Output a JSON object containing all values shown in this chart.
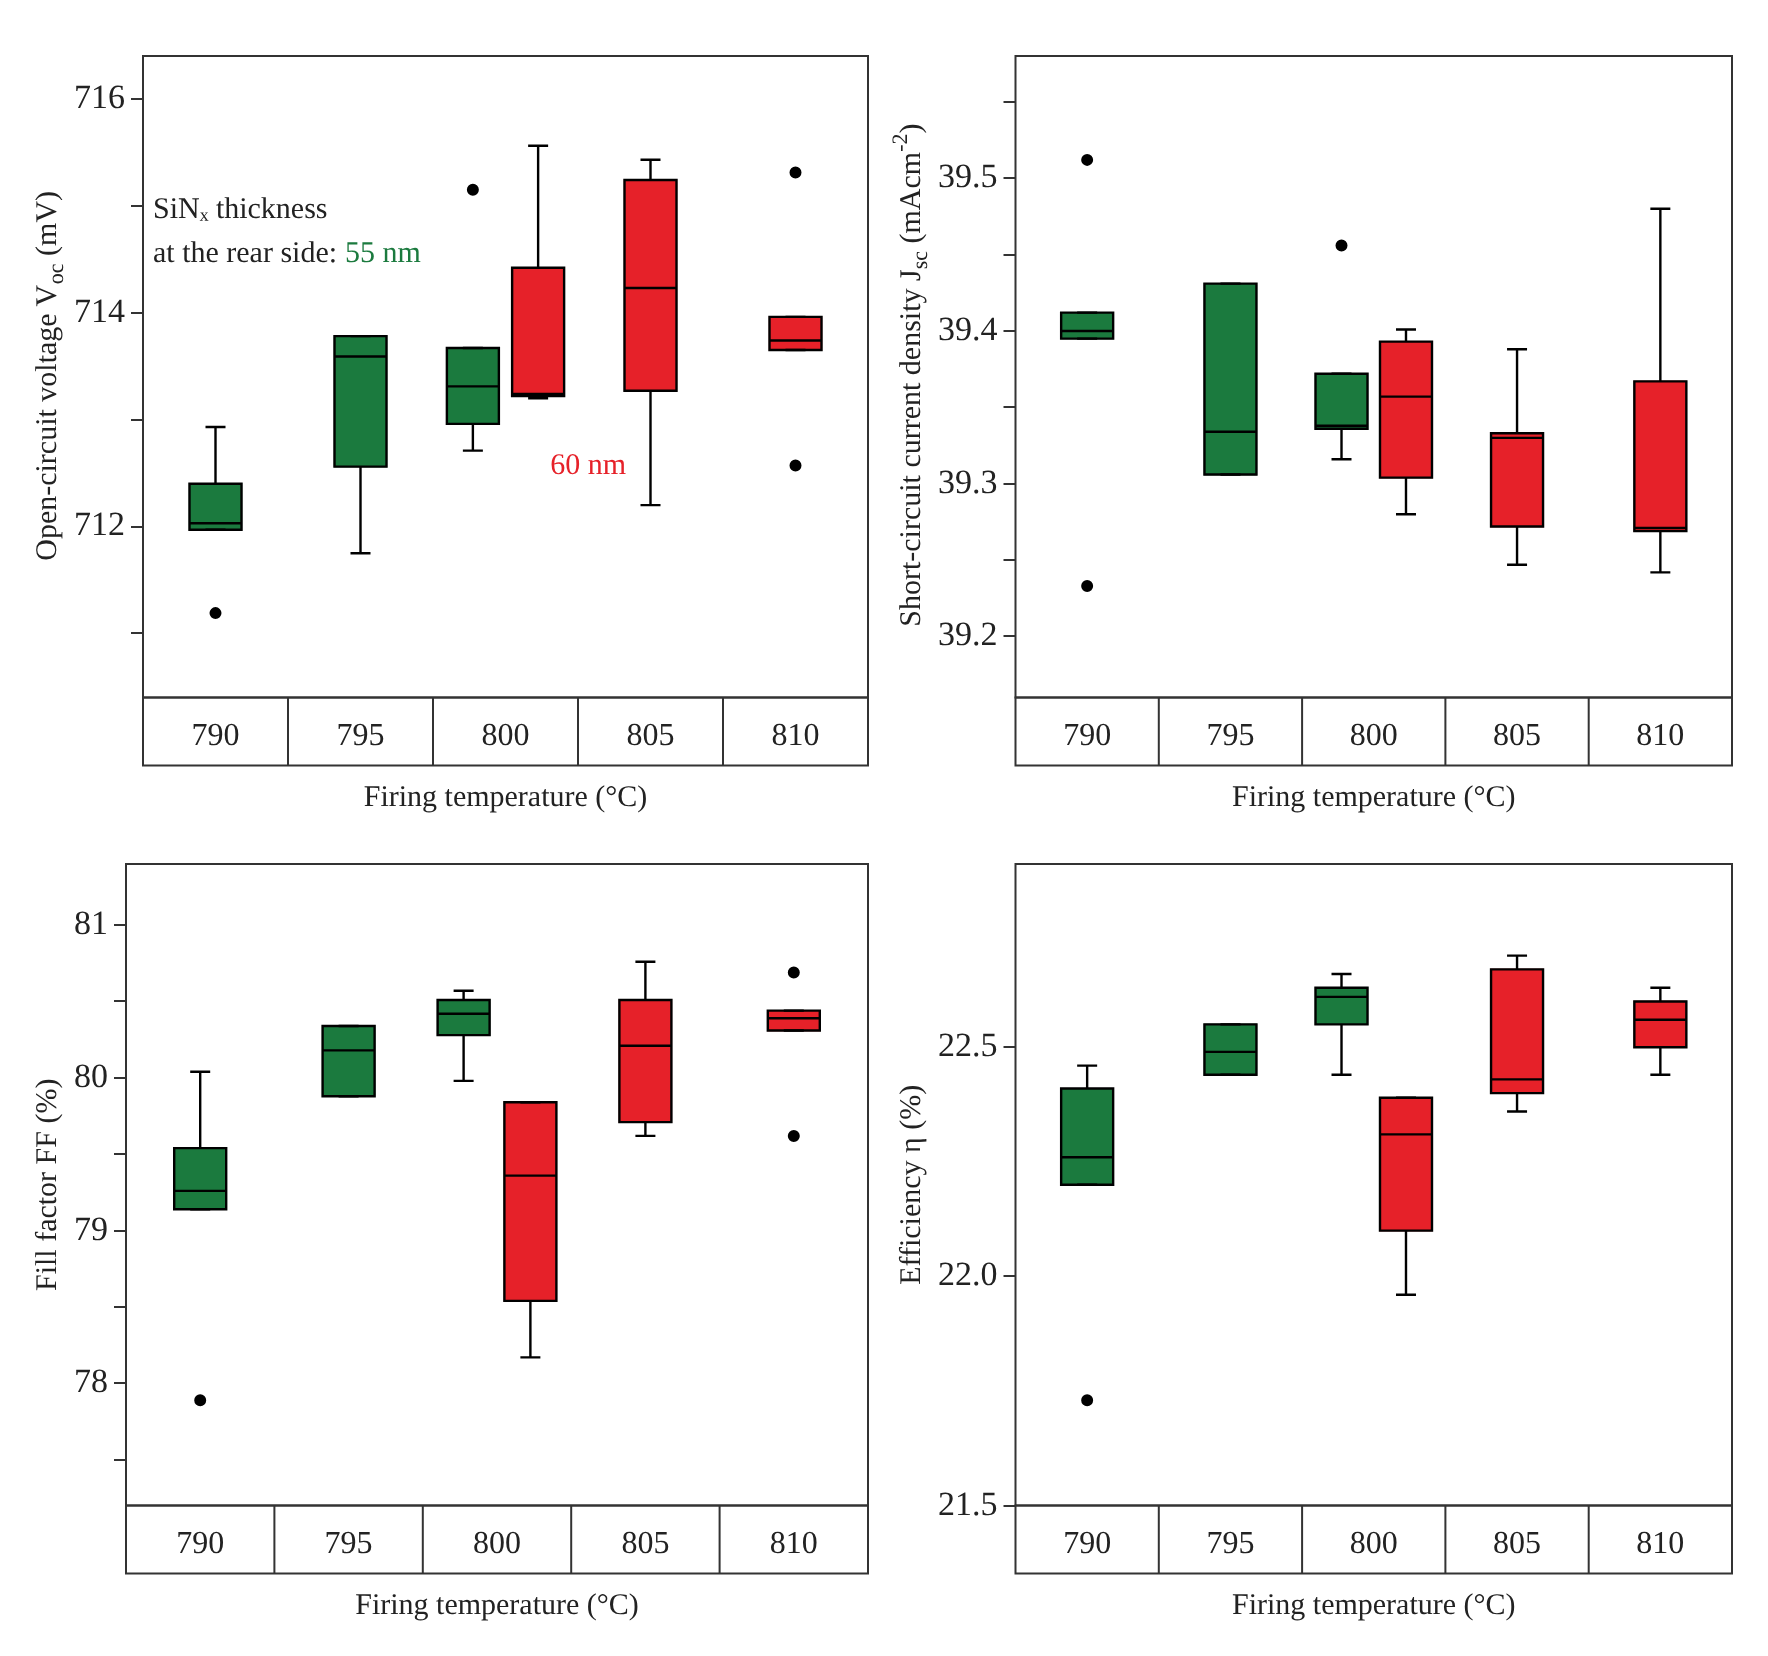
{
  "chart_data": [
    {
      "type": "box",
      "xlabel": "Firing temperature (°C)",
      "ylabel": "Open-circuit voltage V$_{oc}$ (mV)",
      "categories": [
        "790",
        "795",
        "800",
        "805",
        "810"
      ],
      "ylim": [
        710.4,
        716.4
      ],
      "yticks": [
        {
          "value": 711,
          "label": null
        },
        712,
        {
          "value": 713,
          "label": null
        },
        714,
        {
          "value": 715,
          "label": null
        },
        716
      ],
      "annotations": [
        "SiNₓ thickness",
        "at the rear side:"
      ],
      "series": [
        {
          "name": "55 nm",
          "color": "#1b7a3e",
          "boxes": [
            {
              "low": 711.97,
              "q1": 711.97,
              "median": 712.03,
              "q3": 712.4,
              "high": 712.93,
              "outliers": [
                711.19
              ]
            },
            {
              "low": 711.75,
              "q1": 712.56,
              "median": 713.59,
              "q3": 713.78,
              "high": 713.78
            },
            {
              "low": 712.71,
              "q1": 712.96,
              "median": 713.31,
              "q3": 713.67,
              "high": 713.67,
              "outliers": [
                715.15
              ]
            },
            null,
            null
          ]
        },
        {
          "name": "60 nm",
          "color": "#e62129",
          "boxes": [
            null,
            null,
            {
              "low": 713.2,
              "q1": 713.22,
              "median": 713.24,
              "q3": 714.42,
              "high": 715.56
            },
            {
              "low": 712.2,
              "q1": 713.27,
              "median": 714.23,
              "q3": 715.24,
              "high": 715.43
            },
            {
              "low": 713.65,
              "q1": 713.65,
              "median": 713.74,
              "q3": 713.96,
              "high": 713.96,
              "outliers": [
                715.31,
                712.57
              ]
            }
          ]
        }
      ]
    },
    {
      "type": "box",
      "xlabel": "Firing temperature (°C)",
      "ylabel": "Short-circuit current density J$_{sc}$ (mAcm$^{-2}$)",
      "categories": [
        "790",
        "795",
        "800",
        "805",
        "810"
      ],
      "ylim": [
        39.16,
        39.58
      ],
      "yticks": [
        39.2,
        {
          "value": 39.25,
          "label": null
        },
        39.3,
        {
          "value": 39.35,
          "label": null
        },
        39.4,
        {
          "value": 39.45,
          "label": null
        },
        39.5,
        {
          "value": 39.55,
          "label": null
        }
      ],
      "series": [
        {
          "color": "#1b7a3e",
          "boxes": [
            {
              "low": 39.395,
              "q1": 39.395,
              "median": 39.4,
              "q3": 39.412,
              "high": 39.412,
              "outliers": [
                39.512,
                39.233
              ]
            },
            {
              "low": 39.306,
              "q1": 39.306,
              "median": 39.334,
              "q3": 39.431,
              "high": 39.431
            },
            {
              "low": 39.316,
              "q1": 39.336,
              "median": 39.338,
              "q3": 39.372,
              "high": 39.372,
              "outliers": [
                39.456
              ]
            },
            null,
            null
          ]
        },
        {
          "color": "#e62129",
          "boxes": [
            null,
            null,
            {
              "low": 39.28,
              "q1": 39.304,
              "median": 39.357,
              "q3": 39.393,
              "high": 39.401
            },
            {
              "low": 39.247,
              "q1": 39.272,
              "median": 39.33,
              "q3": 39.333,
              "high": 39.388
            },
            {
              "low": 39.242,
              "q1": 39.269,
              "median": 39.271,
              "q3": 39.367,
              "high": 39.48
            }
          ]
        }
      ]
    },
    {
      "type": "box",
      "xlabel": "Firing temperature (°C)",
      "ylabel": "Fill factor FF (%)",
      "categories": [
        "790",
        "795",
        "800",
        "805",
        "810"
      ],
      "ylim": [
        77.2,
        81.4
      ],
      "yticks": [
        {
          "value": 77.5,
          "label": null
        },
        78,
        {
          "value": 78.5,
          "label": null
        },
        79,
        {
          "value": 79.5,
          "label": null
        },
        80,
        {
          "value": 80.5,
          "label": null
        },
        81
      ],
      "series": [
        {
          "color": "#1b7a3e",
          "boxes": [
            {
              "low": 79.14,
              "q1": 79.14,
              "median": 79.26,
              "q3": 79.54,
              "high": 80.04,
              "outliers": [
                77.89
              ]
            },
            {
              "low": 79.88,
              "q1": 79.88,
              "median": 80.18,
              "q3": 80.34,
              "high": 80.34
            },
            {
              "low": 79.98,
              "q1": 80.28,
              "median": 80.42,
              "q3": 80.51,
              "high": 80.57
            },
            null,
            null
          ]
        },
        {
          "color": "#e62129",
          "boxes": [
            null,
            null,
            {
              "low": 78.17,
              "q1": 78.54,
              "median": 79.36,
              "q3": 79.84,
              "high": 79.84
            },
            {
              "low": 79.62,
              "q1": 79.71,
              "median": 80.21,
              "q3": 80.51,
              "high": 80.76
            },
            {
              "low": 80.31,
              "q1": 80.31,
              "median": 80.39,
              "q3": 80.44,
              "high": 80.44,
              "outliers": [
                80.69,
                79.62
              ]
            }
          ]
        }
      ]
    },
    {
      "type": "box",
      "xlabel": "Firing temperature (°C)",
      "ylabel": "Efficiency η (%)",
      "categories": [
        "790",
        "795",
        "800",
        "805",
        "810"
      ],
      "ylim": [
        21.5,
        22.9
      ],
      "yticks": [
        21.5,
        {
          "value": 22,
          "label": "22.0"
        },
        22.5
      ],
      "series": [
        {
          "color": "#1b7a3e",
          "boxes": [
            {
              "low": 22.2,
              "q1": 22.2,
              "median": 22.26,
              "q3": 22.41,
              "high": 22.46,
              "outliers": [
                21.73
              ]
            },
            {
              "low": 22.44,
              "q1": 22.44,
              "median": 22.49,
              "q3": 22.55,
              "high": 22.55
            },
            {
              "low": 22.44,
              "q1": 22.55,
              "median": 22.61,
              "q3": 22.63,
              "high": 22.66
            },
            null,
            null
          ]
        },
        {
          "color": "#e62129",
          "boxes": [
            null,
            null,
            {
              "low": 21.96,
              "q1": 22.1,
              "median": 22.31,
              "q3": 22.39,
              "high": 22.39
            },
            {
              "low": 22.36,
              "q1": 22.4,
              "median": 22.43,
              "q3": 22.67,
              "high": 22.7
            },
            {
              "low": 22.44,
              "q1": 22.5,
              "median": 22.56,
              "q3": 22.6,
              "high": 22.63
            }
          ]
        }
      ]
    }
  ]
}
